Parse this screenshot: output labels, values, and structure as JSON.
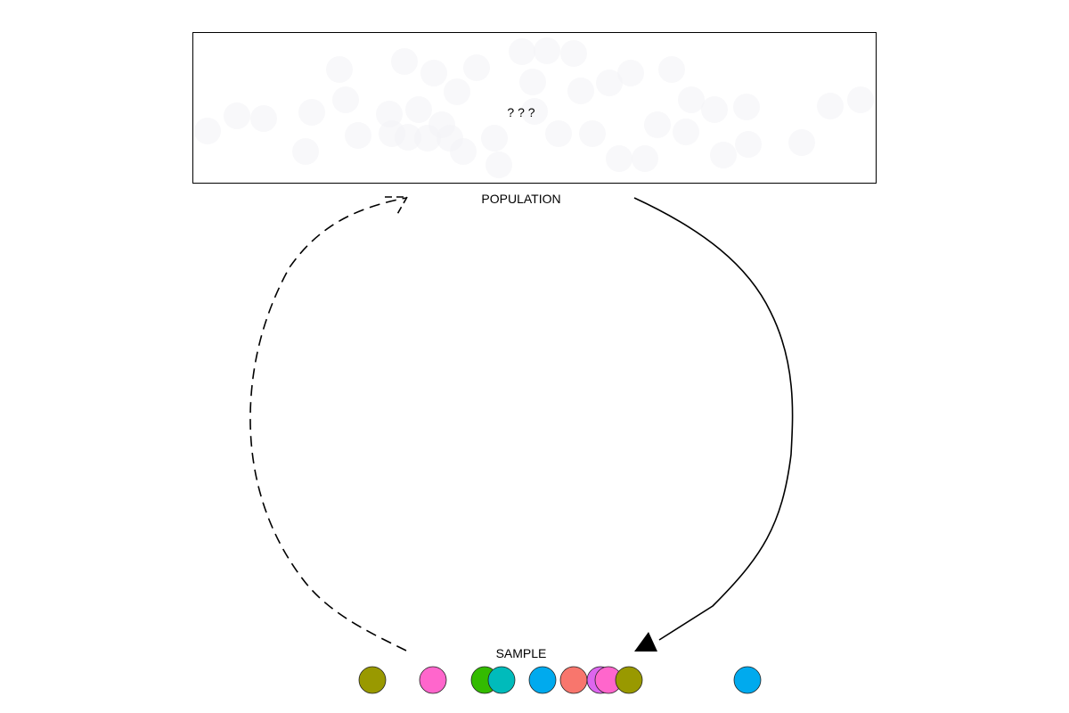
{
  "population": {
    "label": "POPULATION",
    "unknown_text": "? ? ?"
  },
  "sample": {
    "label": "SAMPLE",
    "points": [
      {
        "color": "#999900"
      },
      {
        "color": "#ff66cc"
      },
      {
        "color": "#33bb00"
      },
      {
        "color": "#00bbbb"
      },
      {
        "color": "#00aaee"
      },
      {
        "color": "#f8766d"
      },
      {
        "color": "#dd66ee"
      },
      {
        "color": "#ff66cc"
      },
      {
        "color": "#999900"
      },
      {
        "color": "#00aaee"
      }
    ]
  },
  "arrows": {
    "sampling_style": "solid",
    "inference_style": "dashed"
  }
}
